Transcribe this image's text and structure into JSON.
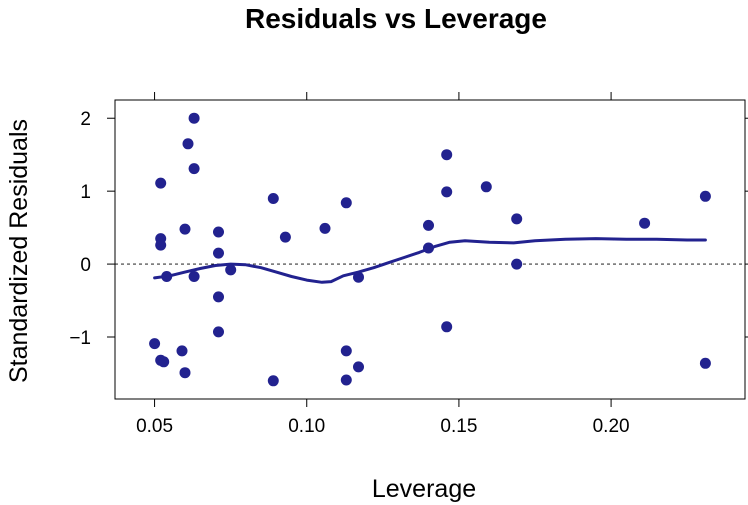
{
  "chart_data": {
    "type": "scatter",
    "title": "Residuals vs Leverage",
    "xlabel": "Leverage",
    "ylabel": "Standardized Residuals",
    "xlim": [
      0.037,
      0.244
    ],
    "ylim": [
      -1.85,
      2.25
    ],
    "x_ticks": [
      0.05,
      0.1,
      0.15,
      0.2
    ],
    "x_tick_labels": [
      "0.05",
      "0.10",
      "0.15",
      "0.20"
    ],
    "y_ticks": [
      -1,
      0,
      1,
      2
    ],
    "y_tick_labels": [
      "−1",
      "0",
      "1",
      "2"
    ],
    "reference_line": 0,
    "grid": false,
    "colors": {
      "points": "#22228f",
      "smooth": "#22228f",
      "reference": "#000000",
      "frame": "#000000"
    },
    "points": [
      {
        "x": 0.05,
        "y": -1.09
      },
      {
        "x": 0.052,
        "y": 1.11
      },
      {
        "x": 0.052,
        "y": 0.35
      },
      {
        "x": 0.052,
        "y": 0.26
      },
      {
        "x": 0.052,
        "y": -1.32
      },
      {
        "x": 0.053,
        "y": -1.34
      },
      {
        "x": 0.054,
        "y": -0.17
      },
      {
        "x": 0.059,
        "y": -1.19
      },
      {
        "x": 0.06,
        "y": 0.48
      },
      {
        "x": 0.06,
        "y": -1.49
      },
      {
        "x": 0.061,
        "y": 1.65
      },
      {
        "x": 0.063,
        "y": 2.0
      },
      {
        "x": 0.063,
        "y": 1.31
      },
      {
        "x": 0.063,
        "y": -0.17
      },
      {
        "x": 0.071,
        "y": 0.44
      },
      {
        "x": 0.071,
        "y": 0.15
      },
      {
        "x": 0.071,
        "y": -0.45
      },
      {
        "x": 0.071,
        "y": -0.93
      },
      {
        "x": 0.075,
        "y": -0.08
      },
      {
        "x": 0.089,
        "y": 0.9
      },
      {
        "x": 0.089,
        "y": -1.6
      },
      {
        "x": 0.093,
        "y": 0.37
      },
      {
        "x": 0.106,
        "y": 0.49
      },
      {
        "x": 0.113,
        "y": 0.84
      },
      {
        "x": 0.113,
        "y": -1.19
      },
      {
        "x": 0.113,
        "y": -1.59
      },
      {
        "x": 0.117,
        "y": -0.18
      },
      {
        "x": 0.117,
        "y": -1.41
      },
      {
        "x": 0.14,
        "y": 0.53
      },
      {
        "x": 0.14,
        "y": 0.22
      },
      {
        "x": 0.146,
        "y": 1.5
      },
      {
        "x": 0.146,
        "y": 0.99
      },
      {
        "x": 0.146,
        "y": -0.86
      },
      {
        "x": 0.159,
        "y": 1.06
      },
      {
        "x": 0.169,
        "y": 0.62
      },
      {
        "x": 0.169,
        "y": 0.0
      },
      {
        "x": 0.211,
        "y": 0.56
      },
      {
        "x": 0.231,
        "y": 0.93
      },
      {
        "x": 0.231,
        "y": -1.36
      }
    ],
    "smooth": [
      {
        "x": 0.05,
        "y": -0.19
      },
      {
        "x": 0.055,
        "y": -0.16
      },
      {
        "x": 0.06,
        "y": -0.11
      },
      {
        "x": 0.065,
        "y": -0.06
      },
      {
        "x": 0.07,
        "y": -0.02
      },
      {
        "x": 0.075,
        "y": 0.0
      },
      {
        "x": 0.08,
        "y": -0.01
      },
      {
        "x": 0.085,
        "y": -0.05
      },
      {
        "x": 0.09,
        "y": -0.11
      },
      {
        "x": 0.095,
        "y": -0.17
      },
      {
        "x": 0.1,
        "y": -0.22
      },
      {
        "x": 0.105,
        "y": -0.25
      },
      {
        "x": 0.108,
        "y": -0.24
      },
      {
        "x": 0.112,
        "y": -0.16
      },
      {
        "x": 0.117,
        "y": -0.11
      },
      {
        "x": 0.122,
        "y": -0.05
      },
      {
        "x": 0.127,
        "y": 0.02
      },
      {
        "x": 0.132,
        "y": 0.09
      },
      {
        "x": 0.137,
        "y": 0.16
      },
      {
        "x": 0.142,
        "y": 0.24
      },
      {
        "x": 0.147,
        "y": 0.3
      },
      {
        "x": 0.152,
        "y": 0.32
      },
      {
        "x": 0.16,
        "y": 0.3
      },
      {
        "x": 0.168,
        "y": 0.29
      },
      {
        "x": 0.175,
        "y": 0.32
      },
      {
        "x": 0.185,
        "y": 0.34
      },
      {
        "x": 0.195,
        "y": 0.35
      },
      {
        "x": 0.205,
        "y": 0.34
      },
      {
        "x": 0.215,
        "y": 0.34
      },
      {
        "x": 0.225,
        "y": 0.33
      },
      {
        "x": 0.231,
        "y": 0.33
      }
    ]
  }
}
